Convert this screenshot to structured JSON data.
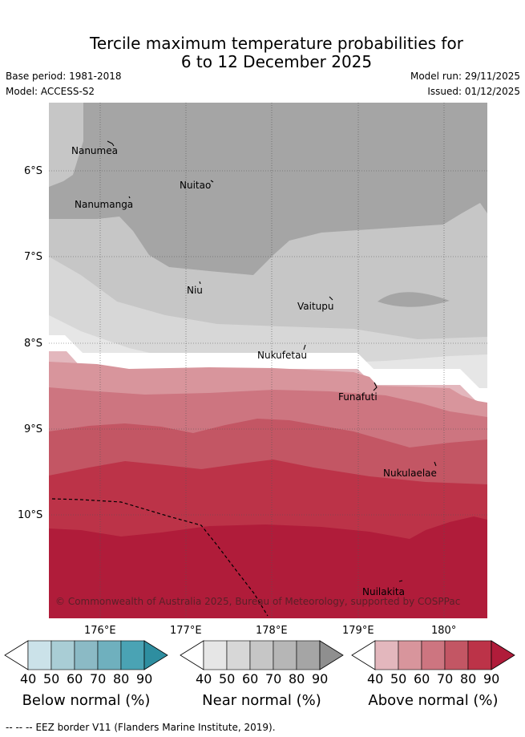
{
  "header": {
    "title_line1": "Tercile maximum temperature probabilities for",
    "title_line2": "6 to 12 December 2025",
    "base_period": "Base period: 1981-2018",
    "model": "Model: ACCESS-S2",
    "model_run": "Model run: 29/11/2025",
    "issued": "Issued: 01/12/2025"
  },
  "map": {
    "lat_labels": [
      "6°S",
      "7°S",
      "8°S",
      "9°S",
      "10°S"
    ],
    "lon_labels": [
      "176°E",
      "177°E",
      "178°E",
      "179°E",
      "180°"
    ],
    "places": [
      "Nanumea",
      "Nuitao",
      "Nanumanga",
      "Niu",
      "Vaitupu",
      "Nukufetau",
      "Funafuti",
      "Nukulaelae",
      "Nuilakita"
    ],
    "copyright": "© Commonwealth of Australia 2025, Bureau of Meteorology, supported by COSPPac"
  },
  "colorbars": [
    {
      "name": "below",
      "title": "Below normal (%)",
      "ticks": [
        "40",
        "50",
        "60",
        "70",
        "80",
        "90"
      ],
      "colors": [
        "#cbe2e9",
        "#a9cdd5",
        "#8bbac5",
        "#6fb0be",
        "#4aa3b4",
        "#2e8ea0"
      ]
    },
    {
      "name": "near",
      "title": "Near normal (%)",
      "ticks": [
        "40",
        "50",
        "60",
        "70",
        "80",
        "90"
      ],
      "colors": [
        "#e6e6e6",
        "#d7d7d7",
        "#c6c6c6",
        "#b6b6b6",
        "#a5a5a5",
        "#8f8f8f"
      ]
    },
    {
      "name": "above",
      "title": "Above normal (%)",
      "ticks": [
        "40",
        "50",
        "60",
        "70",
        "80",
        "90"
      ],
      "colors": [
        "#e3b7bd",
        "#d8959c",
        "#cd7580",
        "#c35664",
        "#bc3348",
        "#b01c3a"
      ]
    }
  ],
  "footer": {
    "legend_dash": "-- -- --",
    "legend_text": "EEZ border V11 (Flanders Marine Institute, 2019)."
  }
}
